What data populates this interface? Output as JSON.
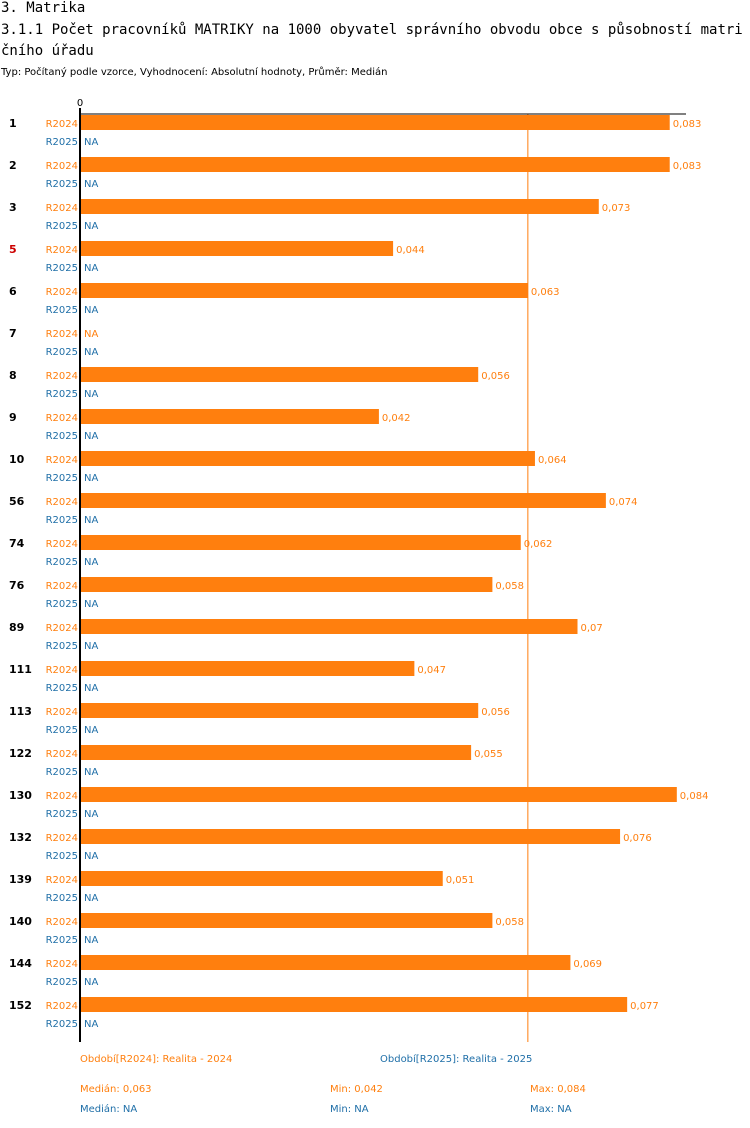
{
  "header": {
    "section": "3. Matrika",
    "title": "3.1.1 Počet pracovníků MATRIKY na 1000 obyvatel správního obvodu obce s působností matričního úřadu",
    "subtitle": "Typ: Počítaný podle vzorce, Vyhodnocení: Absolutní hodnoty, Průměr: Medián"
  },
  "colors": {
    "r2024": "#ff7f0e",
    "r2025": "#1f6fa8",
    "highlight": "#cc0000"
  },
  "chart_data": {
    "type": "bar",
    "orientation": "horizontal",
    "axis_zero_label": "0",
    "xlim": [
      0,
      0.085
    ],
    "median_line": 0.063,
    "series_labels": [
      "R2024",
      "R2025"
    ],
    "na_label": "NA",
    "categories": [
      {
        "label": "1",
        "highlight": false,
        "r2024": 0.083,
        "r2024_label": "0,083",
        "r2025": null
      },
      {
        "label": "2",
        "highlight": false,
        "r2024": 0.083,
        "r2024_label": "0,083",
        "r2025": null
      },
      {
        "label": "3",
        "highlight": false,
        "r2024": 0.073,
        "r2024_label": "0,073",
        "r2025": null
      },
      {
        "label": "5",
        "highlight": true,
        "r2024": 0.044,
        "r2024_label": "0,044",
        "r2025": null
      },
      {
        "label": "6",
        "highlight": false,
        "r2024": 0.063,
        "r2024_label": "0,063",
        "r2025": null
      },
      {
        "label": "7",
        "highlight": false,
        "r2024": null,
        "r2024_label": "NA",
        "r2025": null
      },
      {
        "label": "8",
        "highlight": false,
        "r2024": 0.056,
        "r2024_label": "0,056",
        "r2025": null
      },
      {
        "label": "9",
        "highlight": false,
        "r2024": 0.042,
        "r2024_label": "0,042",
        "r2025": null
      },
      {
        "label": "10",
        "highlight": false,
        "r2024": 0.064,
        "r2024_label": "0,064",
        "r2025": null
      },
      {
        "label": "56",
        "highlight": false,
        "r2024": 0.074,
        "r2024_label": "0,074",
        "r2025": null
      },
      {
        "label": "74",
        "highlight": false,
        "r2024": 0.062,
        "r2024_label": "0,062",
        "r2025": null
      },
      {
        "label": "76",
        "highlight": false,
        "r2024": 0.058,
        "r2024_label": "0,058",
        "r2025": null
      },
      {
        "label": "89",
        "highlight": false,
        "r2024": 0.07,
        "r2024_label": "0,07",
        "r2025": null
      },
      {
        "label": "111",
        "highlight": false,
        "r2024": 0.047,
        "r2024_label": "0,047",
        "r2025": null
      },
      {
        "label": "113",
        "highlight": false,
        "r2024": 0.056,
        "r2024_label": "0,056",
        "r2025": null
      },
      {
        "label": "122",
        "highlight": false,
        "r2024": 0.055,
        "r2024_label": "0,055",
        "r2025": null
      },
      {
        "label": "130",
        "highlight": false,
        "r2024": 0.084,
        "r2024_label": "0,084",
        "r2025": null
      },
      {
        "label": "132",
        "highlight": false,
        "r2024": 0.076,
        "r2024_label": "0,076",
        "r2025": null
      },
      {
        "label": "139",
        "highlight": false,
        "r2024": 0.051,
        "r2024_label": "0,051",
        "r2025": null
      },
      {
        "label": "140",
        "highlight": false,
        "r2024": 0.058,
        "r2024_label": "0,058",
        "r2025": null
      },
      {
        "label": "144",
        "highlight": false,
        "r2024": 0.069,
        "r2024_label": "0,069",
        "r2025": null
      },
      {
        "label": "152",
        "highlight": false,
        "r2024": 0.077,
        "r2024_label": "0,077",
        "r2025": null
      }
    ]
  },
  "legend": {
    "period_2024": "Období[R2024]: Realita - 2024",
    "period_2025": "Období[R2025]: Realita - 2025",
    "r2024_median": "Medián: 0,063",
    "r2024_min": "Min: 0,042",
    "r2024_max": "Max: 0,084",
    "r2025_median": "Medián: NA",
    "r2025_min": "Min: NA",
    "r2025_max": "Max: NA"
  }
}
